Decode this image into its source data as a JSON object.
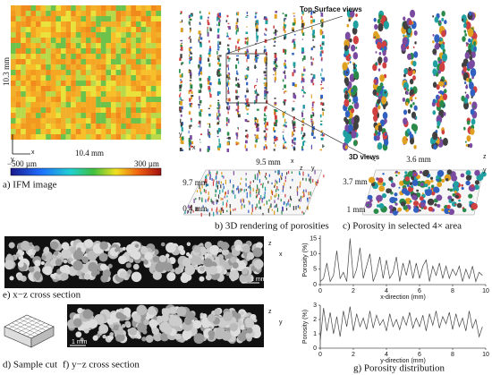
{
  "panels": {
    "a": {
      "caption": "a) IFM image",
      "height": "10.3 mm",
      "width": "10.4 mm",
      "scale_min": "−500 µm",
      "scale_max": "300 µm",
      "axes": [
        "y",
        "x"
      ]
    },
    "b": {
      "caption": "b) 3D rendering of porosities",
      "x_size": "9.5 mm",
      "y_size": "9.7 mm",
      "z_size": "0.4 mm",
      "axes": [
        "y",
        "x",
        "z",
        "x",
        "y"
      ]
    },
    "c": {
      "caption": "c) Porosity in selected 4× area",
      "top_label": "Top Surface views",
      "views_label": "3D views",
      "x_size": "3.6 mm",
      "y_size": "3.7 mm",
      "z_size": "1 mm",
      "axes": [
        "z",
        "y"
      ]
    },
    "d": {
      "caption": "d) Sample cut"
    },
    "e": {
      "caption": "e) x−z cross section",
      "scale": "1 mm",
      "axes": [
        "z",
        "x"
      ]
    },
    "f": {
      "caption": "f) y−z cross section",
      "scale": "1 mm",
      "axes": [
        "z",
        "y"
      ]
    },
    "g": {
      "caption": "g) Porosity distribution"
    }
  },
  "charts": [
    {
      "type": "line",
      "xlabel": "x-direction (mm)",
      "ylabel": "Porosity (%)",
      "color": "#444444",
      "x": [
        0,
        0.2,
        0.4,
        0.6,
        0.8,
        1.0,
        1.2,
        1.4,
        1.6,
        1.8,
        2.0,
        2.2,
        2.4,
        2.6,
        2.8,
        3.0,
        3.2,
        3.4,
        3.6,
        3.8,
        4.0,
        4.2,
        4.4,
        4.6,
        4.8,
        5.0,
        5.2,
        5.4,
        5.6,
        5.8,
        6.0,
        6.2,
        6.4,
        6.6,
        6.8,
        7.0,
        7.2,
        7.4,
        7.6,
        7.8,
        8.0,
        8.2,
        8.4,
        8.6,
        8.8,
        9.0,
        9.2,
        9.4,
        9.6,
        9.8
      ],
      "values": [
        1,
        2,
        7,
        1,
        3,
        11,
        2,
        4,
        1,
        15,
        2,
        5,
        12,
        2,
        6,
        10,
        1,
        4,
        9,
        2,
        8,
        2,
        4,
        9,
        1,
        7,
        3,
        8,
        2,
        7,
        2,
        6,
        8,
        1,
        6,
        3,
        7,
        2,
        6,
        2,
        5,
        3,
        6,
        1,
        5,
        2,
        6,
        1,
        4,
        3
      ],
      "xlim": [
        0,
        10
      ],
      "ylim": [
        0,
        16
      ],
      "xticks": [
        0,
        2,
        4,
        6,
        8,
        10
      ],
      "yticks": [
        0,
        5,
        10,
        15
      ]
    },
    {
      "type": "line",
      "xlabel": "y-direction (mm)",
      "ylabel": "Porosity (%)",
      "color": "#444444",
      "x": [
        0,
        0.2,
        0.4,
        0.6,
        0.8,
        1.0,
        1.2,
        1.4,
        1.6,
        1.8,
        2.0,
        2.2,
        2.4,
        2.6,
        2.8,
        3.0,
        3.2,
        3.4,
        3.6,
        3.8,
        4.0,
        4.2,
        4.4,
        4.6,
        4.8,
        5.0,
        5.2,
        5.4,
        5.6,
        5.8,
        6.0,
        6.2,
        6.4,
        6.6,
        6.8,
        7.0,
        7.2,
        7.4,
        7.6,
        7.8,
        8.0,
        8.2,
        8.4,
        8.6,
        8.8,
        9.0,
        9.2,
        9.4,
        9.6,
        9.8
      ],
      "values": [
        0.5,
        2.8,
        1.2,
        2.5,
        1,
        2.2,
        0.8,
        2.6,
        1.5,
        2.9,
        1.2,
        2.4,
        1.5,
        2.1,
        1.3,
        2.6,
        1.4,
        2.3,
        1.6,
        2.0,
        1.2,
        2.4,
        1.5,
        2.0,
        1.3,
        2.2,
        1.6,
        2.5,
        1.4,
        2.1,
        1.5,
        2.3,
        1.2,
        2.4,
        1.6,
        2.6,
        1.4,
        2.2,
        1.7,
        2.5,
        1.3,
        2.4,
        1.5,
        2.1,
        1.2,
        2.6,
        1.4,
        2.0,
        0.8,
        1.5
      ],
      "xlim": [
        0,
        10
      ],
      "ylim": [
        0,
        3
      ],
      "xticks": [
        0,
        2,
        4,
        6,
        8,
        10
      ],
      "yticks": [
        0,
        1,
        2,
        3
      ]
    }
  ]
}
